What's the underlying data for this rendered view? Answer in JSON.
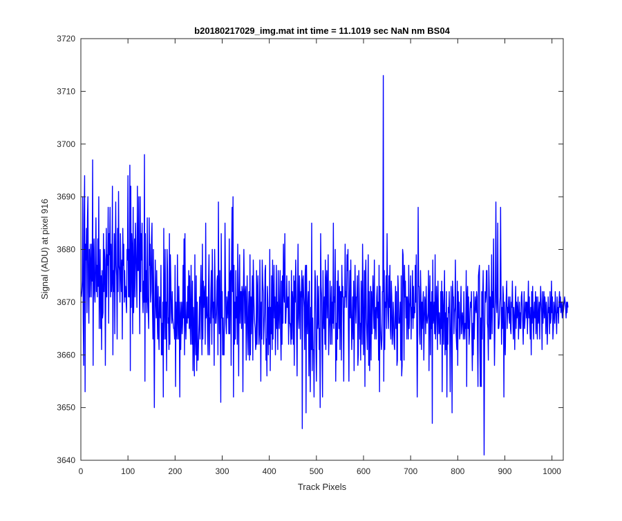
{
  "chart_data": {
    "type": "line",
    "title": "b20180217029_img.mat int time = 11.1019 sec  NaN nm BS04",
    "xlabel": "Track Pixels",
    "ylabel": "Signal (ADU) at pixel 916",
    "xlim": [
      0,
      1024
    ],
    "ylim": [
      3640,
      3720
    ],
    "grid": false,
    "xticks": [
      0,
      100,
      200,
      300,
      400,
      500,
      600,
      700,
      800,
      900,
      1000
    ],
    "yticks": [
      3640,
      3650,
      3660,
      3670,
      3680,
      3690,
      3700,
      3710,
      3720
    ],
    "line_color": "#0000ff",
    "series": [
      {
        "color": "#0000ff",
        "x_start": 1,
        "x_step": 1,
        "values": [
          3671,
          3672,
          3674,
          3690,
          3667,
          3658,
          3686,
          3694,
          3653,
          3681,
          3678,
          3684,
          3668,
          3686,
          3690,
          3672,
          3666,
          3680,
          3671,
          3681,
          3677,
          3671,
          3681,
          3674,
          3697,
          3658,
          3678,
          3682,
          3672,
          3670,
          3678,
          3686,
          3672,
          3677,
          3671,
          3682,
          3673,
          3690,
          3665,
          3672,
          3680,
          3665,
          3675,
          3661,
          3676,
          3667,
          3668,
          3683,
          3672,
          3680,
          3678,
          3658,
          3673,
          3684,
          3671,
          3679,
          3677,
          3688,
          3666,
          3683,
          3679,
          3688,
          3671,
          3681,
          3672,
          3675,
          3692,
          3660,
          3676,
          3672,
          3683,
          3664,
          3679,
          3689,
          3677,
          3675,
          3663,
          3684,
          3672,
          3691,
          3677,
          3676,
          3670,
          3683,
          3676,
          3672,
          3678,
          3663,
          3684,
          3677,
          3681,
          3670,
          3676,
          3671,
          3673,
          3670,
          3668,
          3680,
          3678,
          3694,
          3671,
          3680,
          3671,
          3696,
          3657,
          3692,
          3669,
          3683,
          3680,
          3664,
          3688,
          3668,
          3675,
          3682,
          3671,
          3685,
          3680,
          3675,
          3669,
          3692,
          3676,
          3676,
          3690,
          3675,
          3664,
          3690,
          3672,
          3683,
          3678,
          3685,
          3671,
          3668,
          3674,
          3670,
          3698,
          3655,
          3683,
          3670,
          3676,
          3668,
          3686,
          3671,
          3668,
          3665,
          3686,
          3677,
          3681,
          3670,
          3672,
          3682,
          3685,
          3669,
          3663,
          3680,
          3665,
          3650,
          3668,
          3678,
          3670,
          3667,
          3676,
          3668,
          3663,
          3673,
          3665,
          3661,
          3671,
          3668,
          3667,
          3677,
          3660,
          3666,
          3660,
          3670,
          3652,
          3684,
          3663,
          3669,
          3680,
          3663,
          3670,
          3657,
          3680,
          3676,
          3666,
          3667,
          3661,
          3683,
          3662,
          3679,
          3674,
          3668,
          3666,
          3672,
          3667,
          3666,
          3665,
          3665,
          3663,
          3677,
          3654,
          3670,
          3665,
          3663,
          3679,
          3667,
          3663,
          3673,
          3666,
          3652,
          3670,
          3661,
          3667,
          3670,
          3664,
          3666,
          3677,
          3667,
          3682,
          3660,
          3683,
          3667,
          3663,
          3667,
          3670,
          3666,
          3673,
          3667,
          3676,
          3665,
          3675,
          3666,
          3662,
          3677,
          3667,
          3662,
          3674,
          3657,
          3669,
          3664,
          3656,
          3679,
          3664,
          3660,
          3675,
          3657,
          3670,
          3659,
          3659,
          3663,
          3666,
          3671,
          3663,
          3673,
          3677,
          3668,
          3660,
          3681,
          3663,
          3674,
          3669,
          3671,
          3673,
          3662,
          3685,
          3667,
          3668,
          3671,
          3664,
          3660,
          3673,
          3679,
          3660,
          3667,
          3666,
          3672,
          3676,
          3662,
          3680,
          3671,
          3667,
          3670,
          3658,
          3680,
          3673,
          3666,
          3666,
          3668,
          3674,
          3675,
          3660,
          3689,
          3670,
          3664,
          3676,
          3667,
          3651,
          3683,
          3667,
          3672,
          3660,
          3667,
          3660,
          3660,
          3668,
          3685,
          3674,
          3666,
          3664,
          3671,
          3667,
          3669,
          3672,
          3664,
          3682,
          3664,
          3675,
          3676,
          3658,
          3679,
          3688,
          3672,
          3690,
          3652,
          3677,
          3662,
          3670,
          3663,
          3676,
          3667,
          3671,
          3662,
          3681,
          3670,
          3656,
          3672,
          3679,
          3666,
          3672,
          3672,
          3665,
          3673,
          3672,
          3653,
          3671,
          3680,
          3672,
          3666,
          3672,
          3673,
          3659,
          3668,
          3675,
          3664,
          3660,
          3669,
          3672,
          3659,
          3679,
          3660,
          3671,
          3664,
          3670,
          3675,
          3659,
          3678,
          3672,
          3668,
          3666,
          3665,
          3661,
          3662,
          3676,
          3662,
          3672,
          3675,
          3667,
          3662,
          3664,
          3678,
          3667,
          3655,
          3670,
          3663,
          3678,
          3674,
          3672,
          3662,
          3665,
          3668,
          3676,
          3677,
          3659,
          3663,
          3656,
          3673,
          3670,
          3660,
          3669,
          3662,
          3680,
          3657,
          3669,
          3664,
          3675,
          3661,
          3678,
          3663,
          3670,
          3677,
          3667,
          3671,
          3660,
          3667,
          3677,
          3665,
          3670,
          3661,
          3676,
          3668,
          3665,
          3670,
          3676,
          3664,
          3659,
          3674,
          3662,
          3675,
          3666,
          3681,
          3672,
          3670,
          3683,
          3666,
          3666,
          3669,
          3675,
          3669,
          3669,
          3671,
          3662,
          3674,
          3666,
          3666,
          3665,
          3662,
          3676,
          3663,
          3672,
          3670,
          3662,
          3675,
          3658,
          3674,
          3670,
          3678,
          3673,
          3664,
          3656,
          3671,
          3681,
          3667,
          3665,
          3675,
          3671,
          3663,
          3672,
          3671,
          3676,
          3646,
          3674,
          3675,
          3671,
          3669,
          3661,
          3675,
          3677,
          3649,
          3677,
          3668,
          3664,
          3670,
          3672,
          3656,
          3674,
          3663,
          3653,
          3669,
          3661,
          3685,
          3657,
          3667,
          3661,
          3661,
          3652,
          3667,
          3676,
          3674,
          3662,
          3655,
          3663,
          3675,
          3665,
          3667,
          3673,
          3661,
          3665,
          3650,
          3683,
          3673,
          3671,
          3660,
          3652,
          3676,
          3668,
          3665,
          3671,
          3662,
          3678,
          3661,
          3674,
          3676,
          3667,
          3672,
          3679,
          3660,
          3665,
          3667,
          3674,
          3662,
          3669,
          3673,
          3662,
          3670,
          3666,
          3685,
          3665,
          3671,
          3670,
          3680,
          3655,
          3666,
          3659,
          3674,
          3663,
          3676,
          3672,
          3665,
          3673,
          3661,
          3672,
          3672,
          3659,
          3677,
          3671,
          3673,
          3666,
          3655,
          3671,
          3669,
          3681,
          3671,
          3672,
          3669,
          3679,
          3676,
          3680,
          3665,
          3655,
          3671,
          3676,
          3667,
          3678,
          3668,
          3661,
          3666,
          3671,
          3663,
          3674,
          3657,
          3668,
          3677,
          3670,
          3666,
          3671,
          3671,
          3675,
          3658,
          3660,
          3676,
          3671,
          3663,
          3666,
          3659,
          3674,
          3669,
          3662,
          3681,
          3673,
          3660,
          3665,
          3676,
          3654,
          3675,
          3678,
          3667,
          3664,
          3661,
          3670,
          3679,
          3658,
          3672,
          3657,
          3665,
          3673,
          3659,
          3672,
          3664,
          3669,
          3675,
          3670,
          3665,
          3678,
          3663,
          3667,
          3669,
          3663,
          3671,
          3673,
          3667,
          3670,
          3659,
          3677,
          3653,
          3673,
          3666,
          3663,
          3661,
          3663,
          3672,
          3672,
          3713,
          3655,
          3676,
          3661,
          3670,
          3669,
          3675,
          3665,
          3683,
          3672,
          3668,
          3665,
          3675,
          3669,
          3677,
          3665,
          3663,
          3674,
          3671,
          3662,
          3664,
          3670,
          3667,
          3662,
          3661,
          3668,
          3673,
          3665,
          3672,
          3658,
          3659,
          3675,
          3672,
          3666,
          3666,
          3667,
          3670,
          3659,
          3675,
          3656,
          3658,
          3680,
          3679,
          3672,
          3659,
          3677,
          3671,
          3674,
          3667,
          3671,
          3663,
          3671,
          3669,
          3663,
          3677,
          3665,
          3669,
          3670,
          3675,
          3663,
          3669,
          3667,
          3676,
          3665,
          3673,
          3667,
          3669,
          3668,
          3677,
          3670,
          3679,
          3665,
          3652,
          3663,
          3688,
          3673,
          3673,
          3664,
          3662,
          3676,
          3671,
          3661,
          3670,
          3665,
          3670,
          3672,
          3659,
          3666,
          3671,
          3670,
          3664,
          3673,
          3667,
          3666,
          3667,
          3668,
          3676,
          3657,
          3669,
          3675,
          3660,
          3670,
          3665,
          3672,
          3647,
          3678,
          3666,
          3667,
          3670,
          3664,
          3679,
          3663,
          3667,
          3673,
          3669,
          3661,
          3674,
          3668,
          3664,
          3668,
          3665,
          3662,
          3672,
          3665,
          3674,
          3653,
          3672,
          3669,
          3662,
          3670,
          3676,
          3660,
          3668,
          3661,
          3672,
          3652,
          3667,
          3662,
          3669,
          3668,
          3672,
          3664,
          3653,
          3665,
          3673,
          3664,
          3649,
          3674,
          3671,
          3671,
          3664,
          3668,
          3669,
          3678,
          3665,
          3663,
          3661,
          3674,
          3658,
          3672,
          3667,
          3670,
          3663,
          3664,
          3669,
          3673,
          3664,
          3666,
          3668,
          3666,
          3663,
          3672,
          3665,
          3663,
          3666,
          3665,
          3676,
          3654,
          3671,
          3673,
          3665,
          3671,
          3662,
          3664,
          3668,
          3670,
          3669,
          3672,
          3663,
          3657,
          3666,
          3660,
          3672,
          3663,
          3667,
          3671,
          3669,
          3668,
          3672,
          3671,
          3662,
          3654,
          3675,
          3676,
          3677,
          3661,
          3654,
          3667,
          3654,
          3672,
          3663,
          3671,
          3676,
          3665,
          3641,
          3662,
          3672,
          3670,
          3671,
          3676,
          3676,
          3666,
          3665,
          3659,
          3677,
          3672,
          3663,
          3671,
          3663,
          3669,
          3679,
          3664,
          3672,
          3669,
          3682,
          3668,
          3658,
          3665,
          3674,
          3689,
          3670,
          3668,
          3671,
          3685,
          3665,
          3665,
          3666,
          3669,
          3671,
          3688,
          3671,
          3662,
          3669,
          3665,
          3673,
          3671,
          3652,
          3670,
          3664,
          3660,
          3668,
          3671,
          3674,
          3665,
          3669,
          3668,
          3671,
          3667,
          3666,
          3671,
          3665,
          3664,
          3670,
          3669,
          3674,
          3667,
          3663,
          3669,
          3667,
          3661,
          3669,
          3673,
          3665,
          3670,
          3667,
          3668,
          3671,
          3663,
          3667,
          3670,
          3665,
          3668,
          3665,
          3671,
          3672,
          3669,
          3666,
          3662,
          3668,
          3672,
          3665,
          3667,
          3670,
          3670,
          3667,
          3670,
          3664,
          3669,
          3674,
          3667,
          3671,
          3666,
          3663,
          3669,
          3660,
          3672,
          3666,
          3673,
          3668,
          3663,
          3668,
          3670,
          3667,
          3672,
          3664,
          3671,
          3666,
          3663,
          3671,
          3666,
          3667,
          3670,
          3663,
          3669,
          3673,
          3670,
          3668,
          3661,
          3672,
          3666,
          3669,
          3672,
          3667,
          3671,
          3669,
          3664,
          3670,
          3668,
          3662,
          3666,
          3671,
          3668,
          3669,
          3664,
          3672,
          3666,
          3667,
          3674,
          3668,
          3671,
          3663,
          3665,
          3670,
          3668,
          3666,
          3672,
          3669,
          3667,
          3664,
          3671,
          3668,
          3669,
          3666,
          3670,
          3672,
          3669,
          3671,
          3668,
          3670,
          3669,
          3667,
          3670,
          3668,
          3669,
          3670,
          3671,
          3670,
          3669,
          3667,
          3670,
          3668,
          3670,
          3669
        ]
      }
    ]
  }
}
